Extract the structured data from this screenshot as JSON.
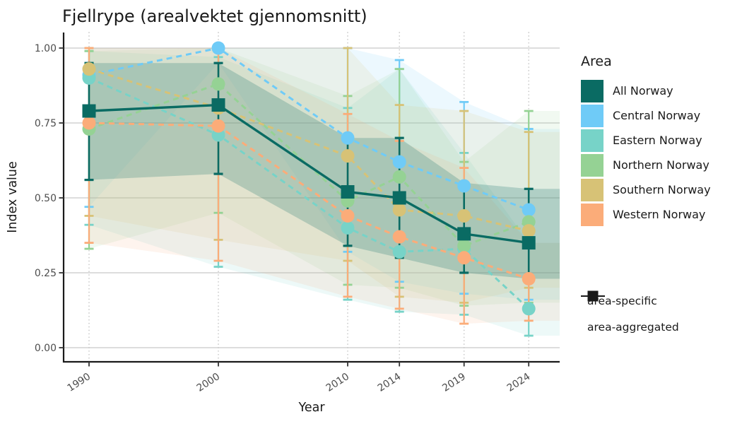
{
  "chart_data": {
    "type": "line",
    "title": "Fjellrype (arealvektet gjennomsnitt)",
    "xlabel": "Year",
    "ylabel": "Index value",
    "x": [
      1990,
      2000,
      2010,
      2014,
      2019,
      2024
    ],
    "ylim": [
      0.0,
      1.0
    ],
    "yticks": [
      "0.00",
      "0.25",
      "0.50",
      "0.75",
      "1.00"
    ],
    "ytick_values": [
      0.0,
      0.25,
      0.5,
      0.75,
      1.0
    ],
    "grid": "horizontal solid grey, vertical dotted grey at each year",
    "legend_title": "Area",
    "legend_position": "right",
    "series": [
      {
        "name": "All Norway",
        "color": "#0A6B63",
        "marker": "square",
        "line": "solid",
        "role": "area-aggregated",
        "values": [
          0.79,
          0.81,
          0.52,
          0.5,
          0.38,
          0.35
        ],
        "lower": [
          0.56,
          0.58,
          0.34,
          0.3,
          0.25,
          0.23
        ],
        "upper": [
          0.95,
          0.95,
          0.7,
          0.7,
          0.55,
          0.53
        ]
      },
      {
        "name": "Central Norway",
        "color": "#6FCBF7",
        "marker": "circle",
        "line": "dashed",
        "role": "area-specific",
        "values": [
          0.91,
          1.0,
          0.7,
          0.62,
          0.54,
          0.46
        ],
        "lower": [
          0.47,
          0.95,
          0.32,
          0.22,
          0.18,
          0.16
        ],
        "upper": [
          1.0,
          1.0,
          1.0,
          0.96,
          0.82,
          0.73
        ]
      },
      {
        "name": "Eastern Norway",
        "color": "#77D3C8",
        "marker": "circle",
        "line": "dashed",
        "role": "area-specific",
        "values": [
          0.9,
          0.71,
          0.4,
          0.32,
          0.33,
          0.13
        ],
        "lower": [
          0.41,
          0.27,
          0.16,
          0.12,
          0.11,
          0.04
        ],
        "upper": [
          0.99,
          0.97,
          0.8,
          0.93,
          0.65,
          0.35
        ]
      },
      {
        "name": "Northern Norway",
        "color": "#95D294",
        "marker": "circle",
        "line": "dashed",
        "role": "area-specific",
        "values": [
          0.73,
          0.88,
          0.49,
          0.57,
          0.34,
          0.42
        ],
        "lower": [
          0.33,
          0.45,
          0.21,
          0.2,
          0.14,
          0.15
        ],
        "upper": [
          0.99,
          1.0,
          0.84,
          0.93,
          0.62,
          0.79
        ]
      },
      {
        "name": "Southern Norway",
        "color": "#D7C276",
        "marker": "circle",
        "line": "dashed",
        "role": "area-specific",
        "values": [
          0.93,
          0.8,
          0.64,
          0.46,
          0.44,
          0.39
        ],
        "lower": [
          0.44,
          0.36,
          0.29,
          0.17,
          0.15,
          0.2
        ],
        "upper": [
          1.0,
          1.0,
          1.0,
          0.81,
          0.79,
          0.72
        ]
      },
      {
        "name": "Western Norway",
        "color": "#FBAC79",
        "marker": "circle",
        "line": "dashed",
        "role": "area-specific",
        "values": [
          0.75,
          0.74,
          0.44,
          0.37,
          0.3,
          0.23
        ],
        "lower": [
          0.35,
          0.29,
          0.17,
          0.13,
          0.08,
          0.09
        ],
        "upper": [
          1.0,
          1.0,
          0.78,
          0.69,
          0.6,
          0.35
        ]
      }
    ],
    "marker_legend": [
      {
        "label": "area-specific",
        "marker": "circle"
      },
      {
        "label": "area-aggregated",
        "marker": "square"
      }
    ]
  }
}
